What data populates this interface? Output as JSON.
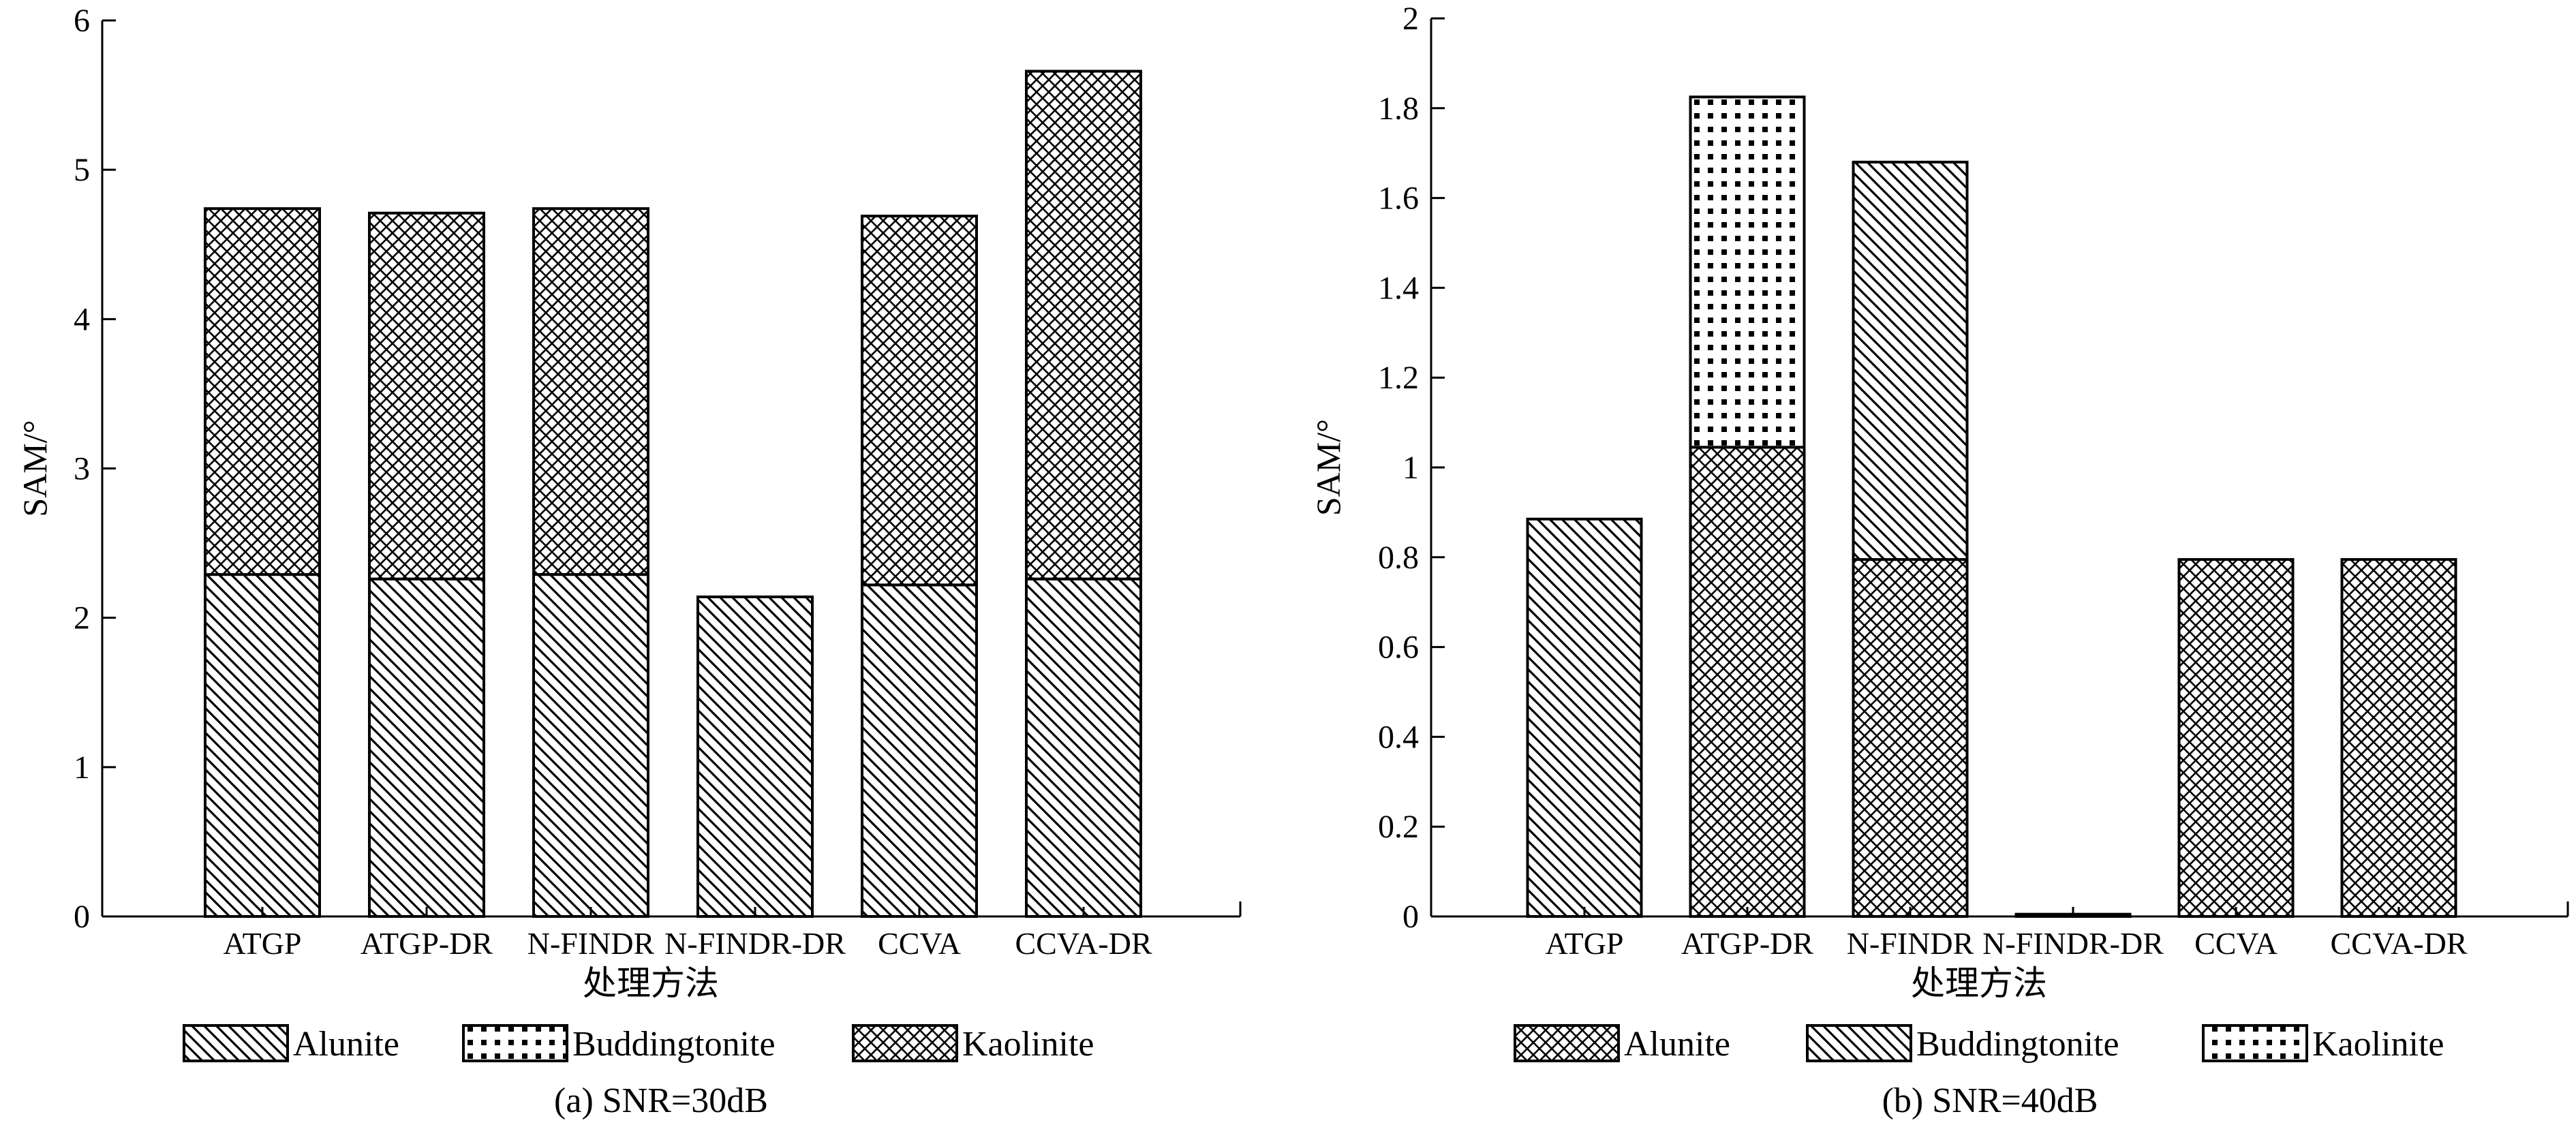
{
  "chart_data": [
    {
      "type": "bar",
      "stacked": true,
      "caption": "(a) SNR=30dB",
      "xlabel": "处理方法",
      "ylabel": "SAM/°",
      "ylim": [
        0,
        6
      ],
      "yticks": [
        "0",
        "1",
        "2",
        "3",
        "4",
        "5",
        "6"
      ],
      "categories": [
        "ATGP",
        "ATGP-DR",
        "N-FINDR",
        "N-FINDR-DR",
        "CCVA",
        "CCVA-DR"
      ],
      "series": [
        {
          "name": "Alunite",
          "pattern": "diag",
          "values": [
            2.29,
            2.26,
            2.29,
            2.14,
            2.22,
            2.26
          ]
        },
        {
          "name": "Buddingtonite",
          "pattern": "dots",
          "values": [
            0,
            0,
            0,
            0,
            0,
            0
          ]
        },
        {
          "name": "Kaolinite",
          "pattern": "cross",
          "values": [
            2.45,
            2.45,
            2.45,
            0,
            2.47,
            3.4
          ]
        }
      ]
    },
    {
      "type": "bar",
      "stacked": true,
      "caption": "(b) SNR=40dB",
      "xlabel": "处理方法",
      "ylabel": "SAM/°",
      "ylim": [
        0,
        2
      ],
      "yticks": [
        "0",
        "0.2",
        "0.4",
        "0.6",
        "0.8",
        "1",
        "1.2",
        "1.4",
        "1.6",
        "1.8",
        "2"
      ],
      "categories": [
        "ATGP",
        "ATGP-DR",
        "N-FINDR",
        "N-FINDR-DR",
        "CCVA",
        "CCVA-DR"
      ],
      "series": [
        {
          "name": "Alunite",
          "pattern": "cross",
          "values": [
            0,
            1.045,
            0.795,
            0,
            0.795,
            0.795
          ]
        },
        {
          "name": "Buddingtonite",
          "pattern": "diag",
          "values": [
            0.885,
            0,
            0.885,
            0.005,
            0,
            0
          ]
        },
        {
          "name": "Kaolinite",
          "pattern": "dots",
          "values": [
            0,
            0.78,
            0,
            0,
            0,
            0
          ]
        }
      ]
    }
  ]
}
